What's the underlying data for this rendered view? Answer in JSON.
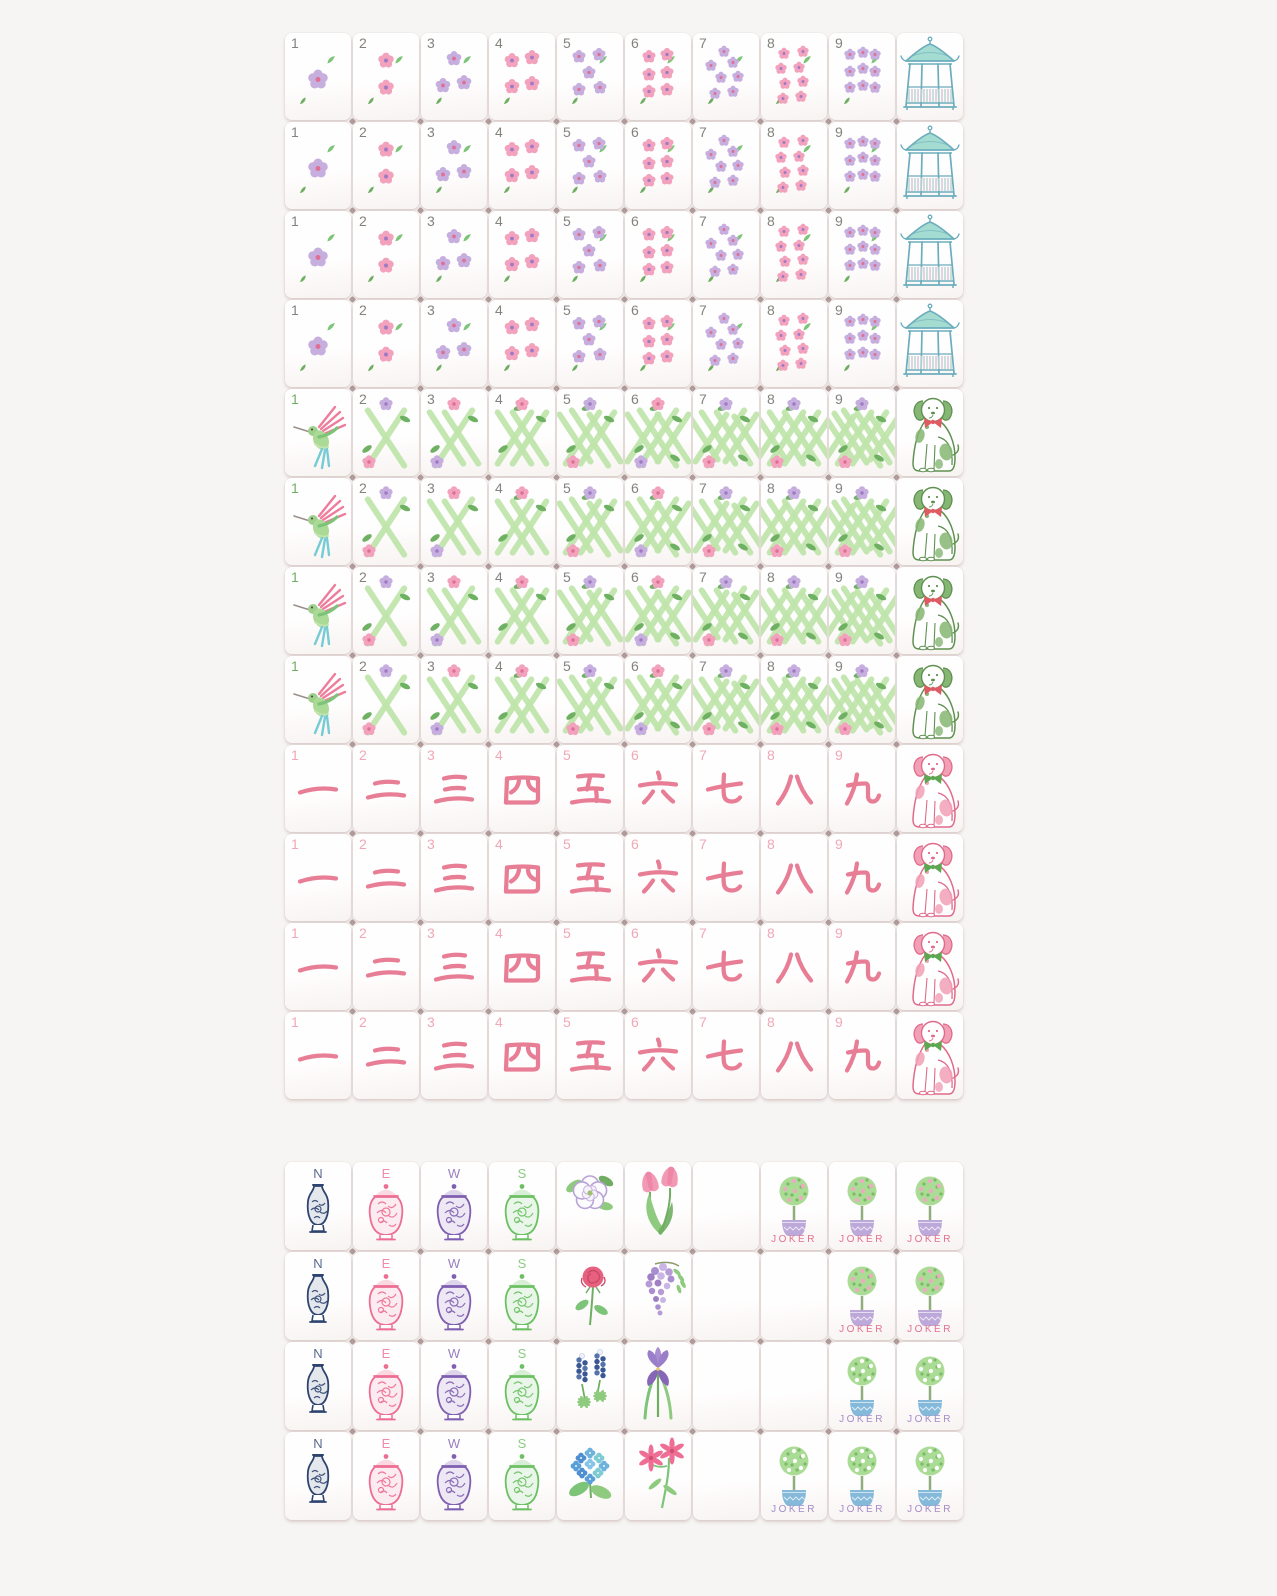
{
  "palette": {
    "background": "#f6f5f3",
    "tile_face": "#fffefe",
    "corner_gray": "#84827e",
    "corner_pink": "#f0a8b6",
    "corner_green": "#6fae62",
    "flower_pink": "#f2a2bc",
    "flower_pink_center": "#e06f94",
    "flower_lavender": "#c6aede",
    "flower_lavender_center": "#9f79c4",
    "leaf_green": "#7cc477",
    "leaf_green_dark": "#6fae62",
    "bamboo_green": "#bfe5ab",
    "bamboo_leaf": "#6fb163",
    "character_pink": "#e87e95",
    "teal_outline": "#6cadbd",
    "teal_roof": "#a5dcd2",
    "navy": "#2e4470",
    "jar_pink": "#ed6e93",
    "jar_purple": "#7f5fb0",
    "jar_green": "#6cc063",
    "dog_green_outline": "#5e9150",
    "dog_green_patch": "#86b673",
    "dog_pink_outline": "#e06a8a",
    "dog_pink_patch": "#f1a0b6",
    "ribbon_red": "#e05a64",
    "ribbon_green": "#5aa84f",
    "joker_text_pink": "#e4718f",
    "joker_text_purple": "#a58cc8",
    "pot_lavender": "#bda8da",
    "pot_blue": "#85b9da",
    "topiary_green": "#abdc95",
    "topiary_dot_pink": "#f0a9c2",
    "topiary_dot_white": "#fdfdfd"
  },
  "suit_sections": [
    {
      "name": "blossom-dots",
      "rows": 4,
      "tiles": [
        {
          "kind": "dots",
          "number": "1",
          "color": "lavender"
        },
        {
          "kind": "dots",
          "number": "2",
          "color": "pink"
        },
        {
          "kind": "dots",
          "number": "3",
          "color": "lavender"
        },
        {
          "kind": "dots",
          "number": "4",
          "color": "pink"
        },
        {
          "kind": "dots",
          "number": "5",
          "color": "lavender"
        },
        {
          "kind": "dots",
          "number": "6",
          "color": "pink"
        },
        {
          "kind": "dots",
          "number": "7",
          "color": "lavender"
        },
        {
          "kind": "dots",
          "number": "8",
          "color": "pink"
        },
        {
          "kind": "dots",
          "number": "9",
          "color": "lavender"
        },
        {
          "kind": "gazebo"
        }
      ]
    },
    {
      "name": "bamboo-trellis",
      "rows": 4,
      "tiles": [
        {
          "kind": "hummingbird",
          "number": "1"
        },
        {
          "kind": "bamboo",
          "number": "2",
          "accents": [
            "lavender",
            "pink"
          ]
        },
        {
          "kind": "bamboo",
          "number": "3",
          "accents": [
            "pink",
            "lavender"
          ]
        },
        {
          "kind": "bamboo",
          "number": "4",
          "accents": [
            "pink"
          ]
        },
        {
          "kind": "bamboo",
          "number": "5",
          "accents": [
            "lavender",
            "pink"
          ]
        },
        {
          "kind": "bamboo",
          "number": "6",
          "accents": [
            "pink",
            "lavender"
          ]
        },
        {
          "kind": "bamboo",
          "number": "7",
          "accents": [
            "lavender",
            "pink"
          ]
        },
        {
          "kind": "bamboo",
          "number": "8",
          "accents": [
            "lavender",
            "pink"
          ]
        },
        {
          "kind": "bamboo",
          "number": "9",
          "accents": [
            "lavender",
            "pink"
          ]
        },
        {
          "kind": "dog",
          "body": "green",
          "ribbon": "red"
        }
      ]
    },
    {
      "name": "characters",
      "rows": 4,
      "tiles": [
        {
          "kind": "character",
          "number": "1",
          "glyph": "一"
        },
        {
          "kind": "character",
          "number": "2",
          "glyph": "二"
        },
        {
          "kind": "character",
          "number": "3",
          "glyph": "三"
        },
        {
          "kind": "character",
          "number": "4",
          "glyph": "四"
        },
        {
          "kind": "character",
          "number": "5",
          "glyph": "五"
        },
        {
          "kind": "character",
          "number": "6",
          "glyph": "六"
        },
        {
          "kind": "character",
          "number": "7",
          "glyph": "七"
        },
        {
          "kind": "character",
          "number": "8",
          "glyph": "八"
        },
        {
          "kind": "character",
          "number": "9",
          "glyph": "九"
        },
        {
          "kind": "dog",
          "body": "pink",
          "ribbon": "green"
        }
      ]
    }
  ],
  "honor_rows": [
    [
      {
        "kind": "wind",
        "letter": "N",
        "color": "navy",
        "jar": "vase"
      },
      {
        "kind": "wind",
        "letter": "E",
        "color": "pink",
        "jar": "ginger"
      },
      {
        "kind": "wind",
        "letter": "W",
        "color": "purple",
        "jar": "ginger"
      },
      {
        "kind": "wind",
        "letter": "S",
        "color": "green",
        "jar": "ginger"
      },
      {
        "kind": "bonus",
        "flower": "white-rose"
      },
      {
        "kind": "bonus",
        "flower": "tulips"
      },
      {
        "kind": "blank"
      },
      {
        "kind": "joker",
        "label": "JOKER",
        "style": "pink"
      },
      {
        "kind": "joker",
        "label": "JOKER",
        "style": "pink"
      },
      {
        "kind": "joker",
        "label": "JOKER",
        "style": "pink"
      }
    ],
    [
      {
        "kind": "wind",
        "letter": "N",
        "color": "navy",
        "jar": "vase"
      },
      {
        "kind": "wind",
        "letter": "E",
        "color": "pink",
        "jar": "ginger"
      },
      {
        "kind": "wind",
        "letter": "W",
        "color": "purple",
        "jar": "ginger"
      },
      {
        "kind": "wind",
        "letter": "S",
        "color": "green",
        "jar": "ginger"
      },
      {
        "kind": "bonus",
        "flower": "red-rose"
      },
      {
        "kind": "bonus",
        "flower": "wisteria"
      },
      {
        "kind": "blank"
      },
      {
        "kind": "blank"
      },
      {
        "kind": "joker",
        "label": "JOKER",
        "style": "pink"
      },
      {
        "kind": "joker",
        "label": "JOKER",
        "style": "pink"
      }
    ],
    [
      {
        "kind": "wind",
        "letter": "N",
        "color": "navy",
        "jar": "vase"
      },
      {
        "kind": "wind",
        "letter": "E",
        "color": "pink",
        "jar": "ginger"
      },
      {
        "kind": "wind",
        "letter": "W",
        "color": "purple",
        "jar": "ginger"
      },
      {
        "kind": "wind",
        "letter": "S",
        "color": "green",
        "jar": "ginger"
      },
      {
        "kind": "bonus",
        "flower": "bluebonnet"
      },
      {
        "kind": "bonus",
        "flower": "iris"
      },
      {
        "kind": "blank"
      },
      {
        "kind": "blank"
      },
      {
        "kind": "joker",
        "label": "JOKER",
        "style": "blue"
      },
      {
        "kind": "joker",
        "label": "JOKER",
        "style": "blue"
      }
    ],
    [
      {
        "kind": "wind",
        "letter": "N",
        "color": "navy",
        "jar": "vase"
      },
      {
        "kind": "wind",
        "letter": "E",
        "color": "pink",
        "jar": "ginger"
      },
      {
        "kind": "wind",
        "letter": "W",
        "color": "purple",
        "jar": "ginger"
      },
      {
        "kind": "wind",
        "letter": "S",
        "color": "green",
        "jar": "ginger"
      },
      {
        "kind": "bonus",
        "flower": "hydrangea"
      },
      {
        "kind": "bonus",
        "flower": "lily"
      },
      {
        "kind": "blank"
      },
      {
        "kind": "joker",
        "label": "JOKER",
        "style": "blue"
      },
      {
        "kind": "joker",
        "label": "JOKER",
        "style": "blue"
      },
      {
        "kind": "joker",
        "label": "JOKER",
        "style": "blue"
      }
    ]
  ]
}
